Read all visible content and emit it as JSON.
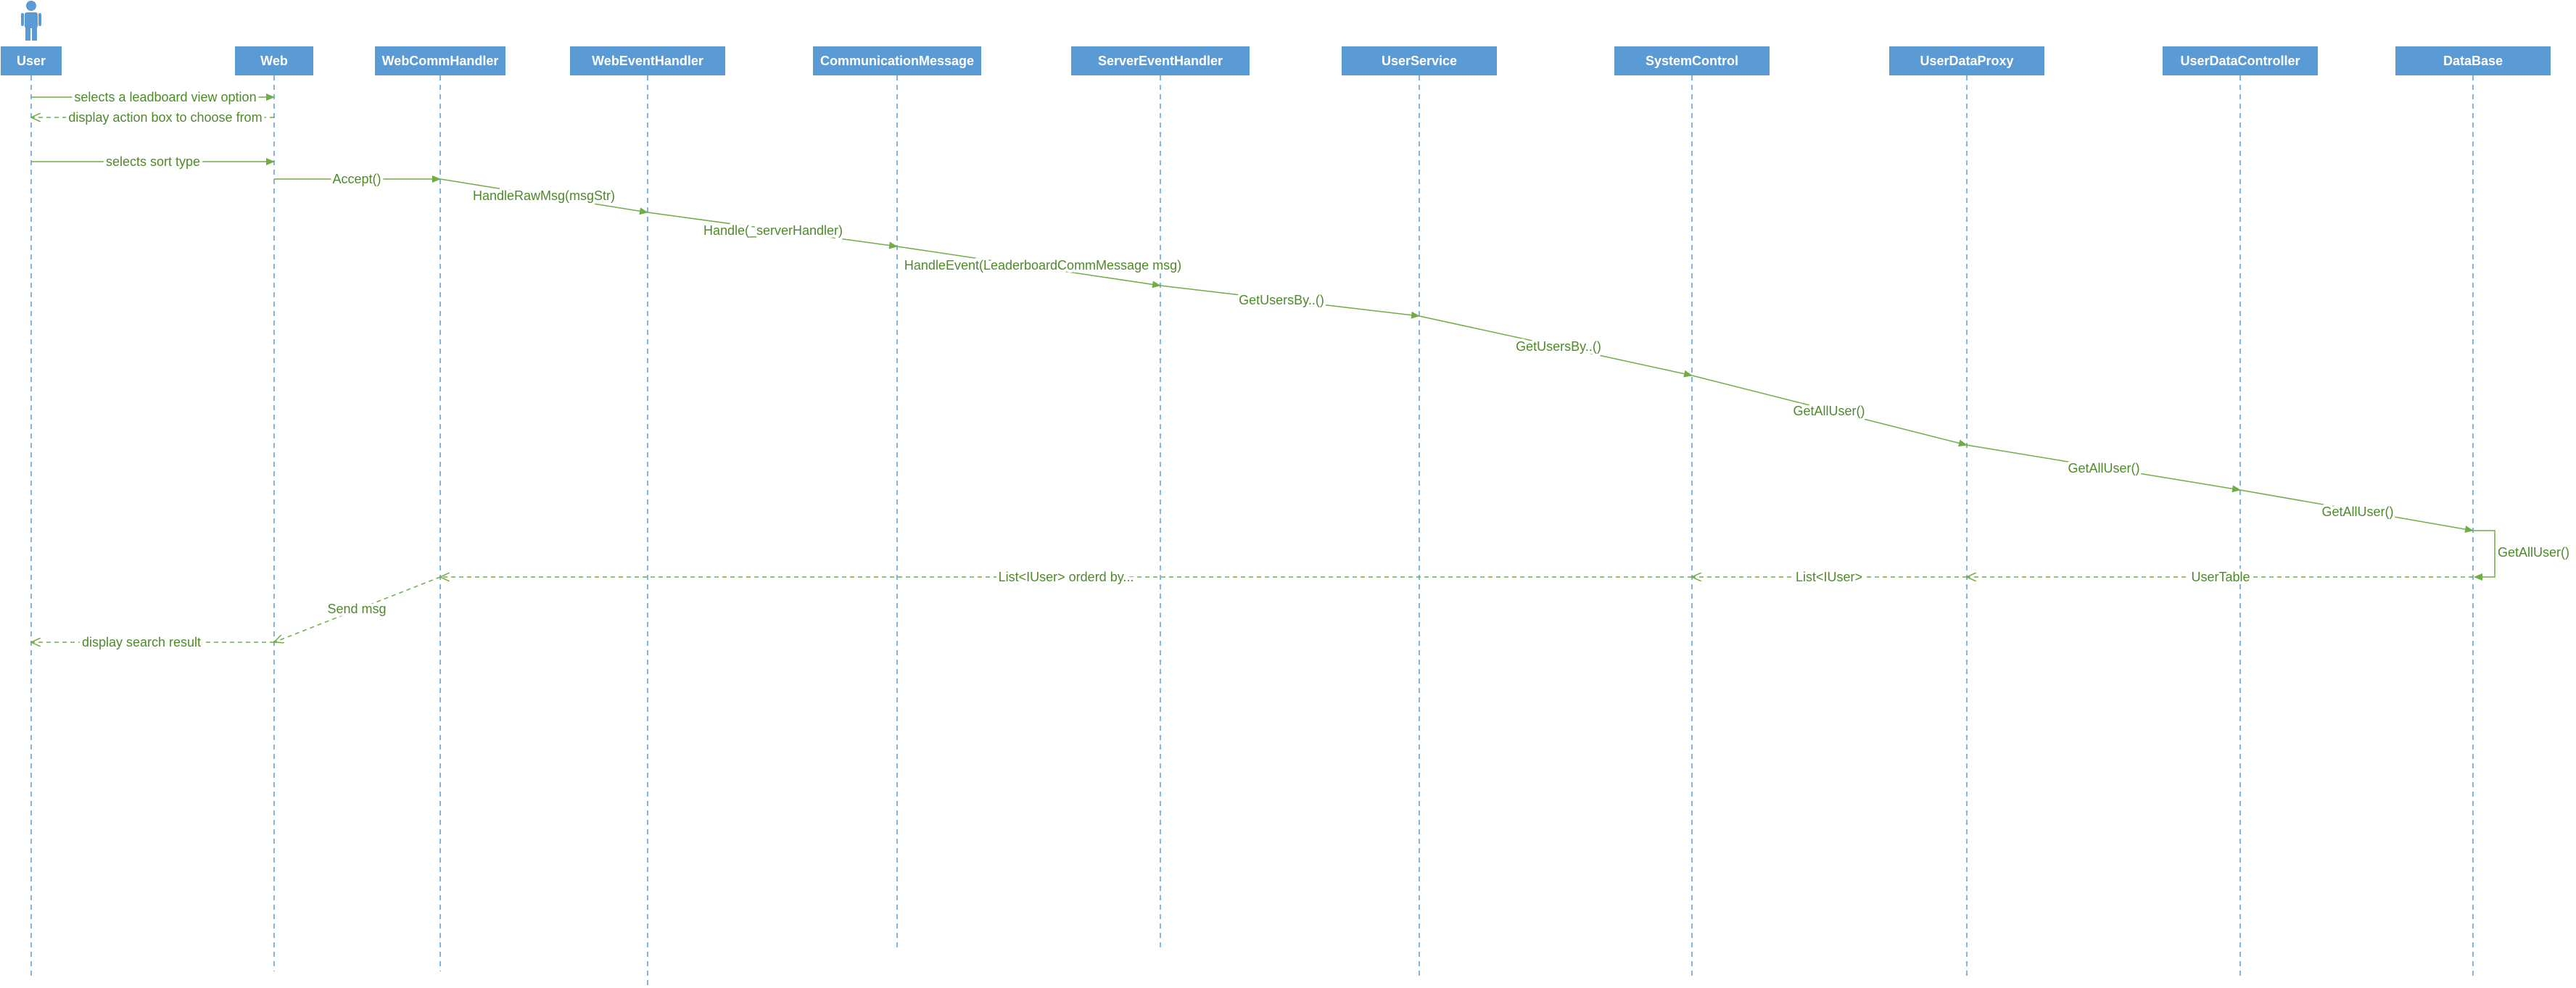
{
  "diagram": {
    "type": "sequence",
    "colors": {
      "header": "#5b9bd5",
      "lifeline": "#5b9bd5",
      "message": "#70ad47",
      "message_text": "#4f8a2a"
    },
    "actor": {
      "name": "User",
      "icon": "person-icon"
    },
    "participants": [
      {
        "id": "user",
        "label": "User"
      },
      {
        "id": "web",
        "label": "Web"
      },
      {
        "id": "webcomm",
        "label": "WebCommHandler"
      },
      {
        "id": "webevent",
        "label": "WebEventHandler"
      },
      {
        "id": "commmsg",
        "label": "CommunicationMessage"
      },
      {
        "id": "serverevent",
        "label": "ServerEventHandler"
      },
      {
        "id": "userservice",
        "label": "UserService"
      },
      {
        "id": "systemcontrol",
        "label": "SystemControl"
      },
      {
        "id": "proxy",
        "label": "UserDataProxy"
      },
      {
        "id": "controller",
        "label": "UserDataController"
      },
      {
        "id": "database",
        "label": "DataBase"
      }
    ],
    "messages": [
      {
        "from": "user",
        "to": "web",
        "label": "selects a leadboard view option",
        "kind": "sync"
      },
      {
        "from": "web",
        "to": "user",
        "label": "display action box to choose from",
        "kind": "return"
      },
      {
        "from": "user",
        "to": "web",
        "label": "selects sort type",
        "kind": "sync"
      },
      {
        "from": "web",
        "to": "webcomm",
        "label": "Accept()",
        "kind": "sync"
      },
      {
        "from": "webcomm",
        "to": "webevent",
        "label": "HandleRawMsg(msgStr)",
        "kind": "sync"
      },
      {
        "from": "webevent",
        "to": "commmsg",
        "label": "Handle(_serverHandler)",
        "kind": "sync"
      },
      {
        "from": "commmsg",
        "to": "serverevent",
        "label": "HandleEvent(LeaderboardCommMessage msg)",
        "kind": "sync"
      },
      {
        "from": "serverevent",
        "to": "userservice",
        "label": "GetUsersBy..()",
        "kind": "sync"
      },
      {
        "from": "userservice",
        "to": "systemcontrol",
        "label": "GetUsersBy..()",
        "kind": "sync"
      },
      {
        "from": "systemcontrol",
        "to": "proxy",
        "label": "GetAllUser()",
        "kind": "sync"
      },
      {
        "from": "proxy",
        "to": "controller",
        "label": "GetAllUser()",
        "kind": "sync"
      },
      {
        "from": "controller",
        "to": "database",
        "label": "GetAllUser()",
        "kind": "sync"
      },
      {
        "from": "database",
        "to": "database",
        "label": "GetAllUser()",
        "kind": "self"
      },
      {
        "from": "database",
        "to": "proxy",
        "label": "UserTable",
        "kind": "return"
      },
      {
        "from": "proxy",
        "to": "systemcontrol",
        "label": "List<IUser>",
        "kind": "return"
      },
      {
        "from": "systemcontrol",
        "to": "webcomm",
        "label": "List<IUser> orderd by...",
        "kind": "return"
      },
      {
        "from": "webcomm",
        "to": "web",
        "label": "Send msg",
        "kind": "return"
      },
      {
        "from": "web",
        "to": "user",
        "label": "display search result",
        "kind": "return"
      }
    ]
  }
}
